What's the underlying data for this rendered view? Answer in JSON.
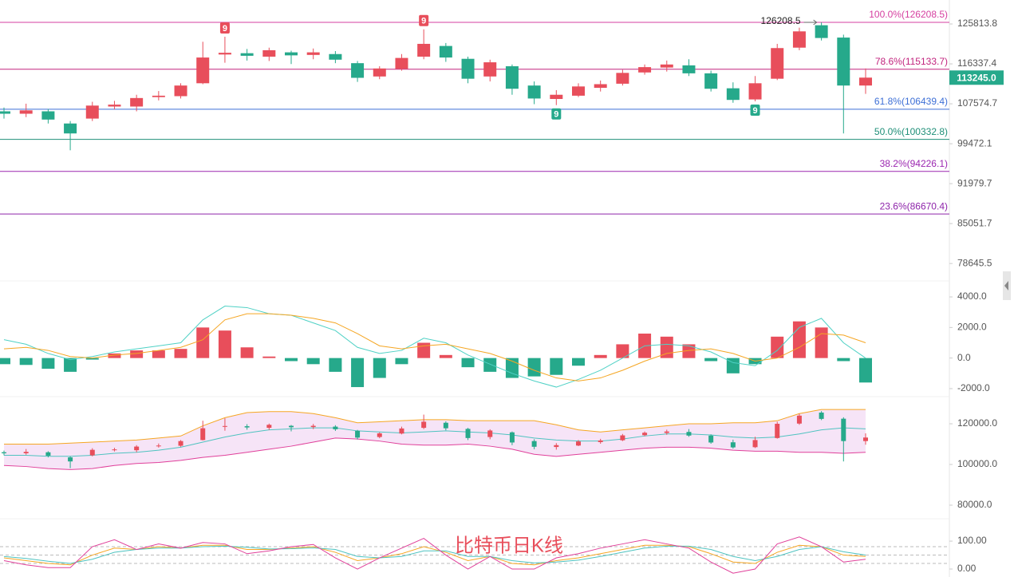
{
  "chart_data": [
    {
      "type": "candlestick",
      "log": true,
      "ylim": [
        76240,
        131870
      ],
      "yticks": [
        125813.8,
        116337.4,
        107574.7,
        99472.1,
        91979.7,
        85051.7,
        78645.5
      ],
      "up_color": "#e84e5b",
      "down_color": "#26a98b",
      "open": [
        106000,
        105500,
        106000,
        103500,
        104500,
        107000,
        107000,
        109000,
        109200,
        112000,
        118500,
        118800,
        118000,
        119000,
        118400,
        118600,
        116500,
        113500,
        115200,
        118000,
        120500,
        117500,
        113500,
        115800,
        111500,
        108600,
        109300,
        111000,
        111900,
        114400,
        115500,
        116000,
        114200,
        110900,
        108500,
        113000,
        120100,
        125500,
        122500,
        111500
      ],
      "high": [
        106800,
        107600,
        106500,
        104000,
        108000,
        108200,
        109500,
        110300,
        112000,
        121500,
        122700,
        119800,
        120100,
        119400,
        119900,
        119300,
        117000,
        115800,
        118600,
        124500,
        121200,
        118000,
        117300,
        116200,
        112400,
        110500,
        112000,
        112600,
        115000,
        116200,
        117100,
        117400,
        114800,
        112200,
        113600,
        121000,
        124900,
        126208.5,
        123200,
        115300
      ],
      "low": [
        104500,
        104800,
        103500,
        98200,
        104000,
        106400,
        106000,
        108300,
        108700,
        111800,
        116600,
        117100,
        117000,
        116300,
        117400,
        116500,
        112300,
        112900,
        114800,
        117400,
        116800,
        112000,
        112400,
        109500,
        107500,
        107300,
        109000,
        110200,
        111500,
        113900,
        114600,
        113600,
        110200,
        107800,
        108100,
        112700,
        119500,
        121800,
        101500,
        109700
      ],
      "close": [
        105500,
        106200,
        104300,
        101500,
        107200,
        107400,
        108800,
        109300,
        111500,
        117800,
        118900,
        118200,
        119500,
        118300,
        119000,
        117300,
        113200,
        115300,
        117700,
        121000,
        117800,
        113000,
        116700,
        110800,
        108700,
        109500,
        111300,
        111800,
        114300,
        115600,
        116200,
        114200,
        110800,
        108400,
        112000,
        120000,
        124000,
        122400,
        111500,
        113245
      ],
      "fib_levels": [
        {
          "label": "100.0%(126208.5)",
          "value": 126208.5,
          "color": "#d63fa0"
        },
        {
          "label": "78.6%(115133.7)",
          "value": 115133.7,
          "color": "#c2247e"
        },
        {
          "label": "61.8%(106439.4)",
          "value": 106439.4,
          "color": "#3d6fd6"
        },
        {
          "label": "50.0%(100332.8)",
          "value": 100332.8,
          "color": "#1f8f78"
        },
        {
          "label": "38.2%(94226.1)",
          "value": 94226.1,
          "color": "#9b27b0"
        },
        {
          "label": "23.6%(86670.4)",
          "value": 86670.4,
          "color": "#8e24aa"
        }
      ],
      "markers": [
        {
          "text": "9",
          "candle": 10,
          "side": "above",
          "color": "#e84e5b"
        },
        {
          "text": "9",
          "candle": 19,
          "side": "above",
          "color": "#e84e5b"
        },
        {
          "text": "9",
          "candle": 25,
          "side": "below",
          "color": "#26a98b"
        },
        {
          "text": "9",
          "candle": 34,
          "side": "below",
          "color": "#26a98b"
        }
      ],
      "high_label": 126208.5,
      "last_price": {
        "value": 113245,
        "label": "113245.0",
        "color": "#26a98b"
      }
    },
    {
      "type": "macd",
      "ylim": [
        -2420,
        4890
      ],
      "yticks": [
        {
          "value": 4000,
          "label": "4000.0"
        },
        {
          "value": 2000,
          "label": "2000.0"
        },
        {
          "value": 0,
          "label": "0.0"
        },
        {
          "value": -2000,
          "label": "-2000.0"
        }
      ],
      "up_color": "#e84e5b",
      "down_color": "#26a98b",
      "histogram": [
        -400,
        -450,
        -700,
        -900,
        -100,
        300,
        500,
        500,
        600,
        2000,
        1800,
        700,
        100,
        -200,
        -400,
        -900,
        -1900,
        -1300,
        -400,
        1000,
        200,
        -600,
        -900,
        -1300,
        -1200,
        -1100,
        -500,
        200,
        900,
        1600,
        1400,
        900,
        -200,
        -1000,
        -400,
        1400,
        2400,
        2000,
        -200,
        -1600
      ],
      "lines": [
        {
          "color": "#4fd1c5",
          "values": [
            1200,
            900,
            300,
            -100,
            100,
            400,
            600,
            800,
            1000,
            2500,
            3400,
            3300,
            2900,
            2800,
            2300,
            1800,
            700,
            300,
            500,
            1300,
            1000,
            200,
            -400,
            -1000,
            -1500,
            -1900,
            -1400,
            -800,
            0,
            800,
            900,
            800,
            400,
            -300,
            -500,
            500,
            2000,
            2600,
            1000,
            0
          ]
        },
        {
          "color": "#f5a623",
          "values": [
            600,
            700,
            500,
            100,
            0,
            200,
            300,
            500,
            700,
            1200,
            2500,
            2900,
            2900,
            2800,
            2600,
            2300,
            1600,
            800,
            600,
            800,
            900,
            600,
            300,
            -200,
            -800,
            -1300,
            -1500,
            -1300,
            -800,
            -200,
            300,
            500,
            600,
            300,
            -200,
            0,
            700,
            1600,
            1500,
            1000
          ]
        }
      ]
    },
    {
      "type": "bollinger",
      "ylim": [
        75300,
        132160
      ],
      "yticks": [
        {
          "value": 120000,
          "label": "120000.0"
        },
        {
          "value": 100000,
          "label": "100000.0"
        },
        {
          "value": 80000,
          "label": "80000.0"
        }
      ],
      "fill_color": "#f6e4f7",
      "bands": [
        {
          "color": "#f5a623",
          "values": [
            110000,
            110000,
            110000,
            110500,
            111000,
            111500,
            112000,
            113000,
            114000,
            119000,
            123000,
            125500,
            126000,
            126000,
            125000,
            123000,
            120500,
            121000,
            121500,
            122000,
            122000,
            121500,
            121500,
            121500,
            121500,
            119500,
            117000,
            116000,
            117000,
            118000,
            119000,
            120000,
            120000,
            120500,
            120500,
            121500,
            125000,
            127000,
            127000,
            127000
          ]
        },
        {
          "color": "#4fc3c0",
          "values": [
            104500,
            104500,
            104000,
            104000,
            104500,
            105500,
            106000,
            107000,
            108500,
            111000,
            113500,
            115500,
            117000,
            117500,
            118000,
            118000,
            116500,
            116000,
            115500,
            116000,
            116500,
            116000,
            115500,
            114500,
            113000,
            112000,
            111500,
            111500,
            112500,
            114000,
            115000,
            115000,
            114500,
            113500,
            113000,
            113500,
            115000,
            117000,
            118000,
            117500
          ]
        },
        {
          "color": "#e0409a",
          "values": [
            99500,
            99000,
            98000,
            97500,
            98000,
            99500,
            100500,
            101000,
            102000,
            103500,
            104500,
            106000,
            107500,
            109000,
            111000,
            113000,
            112500,
            111500,
            110000,
            109500,
            109500,
            110000,
            109000,
            107500,
            105000,
            104000,
            105000,
            106000,
            107000,
            108000,
            108500,
            108500,
            108000,
            107000,
            106500,
            106500,
            106000,
            106000,
            105500,
            106000
          ]
        }
      ]
    },
    {
      "type": "kdj",
      "title": "比特币日K线",
      "title_color": "#e84e5b",
      "ylim": [
        -20,
        166
      ],
      "yticks": [
        {
          "value": 100,
          "label": "100.00"
        },
        {
          "value": 0,
          "label": "0.00"
        }
      ],
      "levels": [
        80,
        50,
        20
      ],
      "lines": [
        {
          "color": "#f5a623",
          "values": [
            40,
            30,
            20,
            15,
            50,
            75,
            70,
            80,
            75,
            85,
            85,
            70,
            70,
            75,
            80,
            60,
            30,
            40,
            55,
            80,
            60,
            30,
            45,
            20,
            15,
            30,
            40,
            55,
            70,
            85,
            85,
            80,
            55,
            25,
            20,
            60,
            85,
            80,
            50,
            45
          ]
        },
        {
          "color": "#4fc3c0",
          "values": [
            45,
            38,
            28,
            20,
            35,
            60,
            70,
            75,
            75,
            80,
            82,
            78,
            72,
            73,
            76,
            70,
            45,
            40,
            45,
            65,
            65,
            45,
            45,
            30,
            22,
            25,
            32,
            45,
            60,
            75,
            82,
            82,
            70,
            45,
            30,
            45,
            70,
            80,
            62,
            50
          ]
        },
        {
          "color": "#e0409a",
          "values": [
            30,
            15,
            5,
            5,
            80,
            105,
            70,
            90,
            75,
            95,
            90,
            55,
            65,
            80,
            88,
            40,
            0,
            40,
            75,
            110,
            50,
            0,
            45,
            0,
            0,
            40,
            55,
            75,
            90,
            105,
            90,
            75,
            25,
            -15,
            0,
            90,
            115,
            80,
            25,
            35
          ]
        }
      ]
    }
  ]
}
